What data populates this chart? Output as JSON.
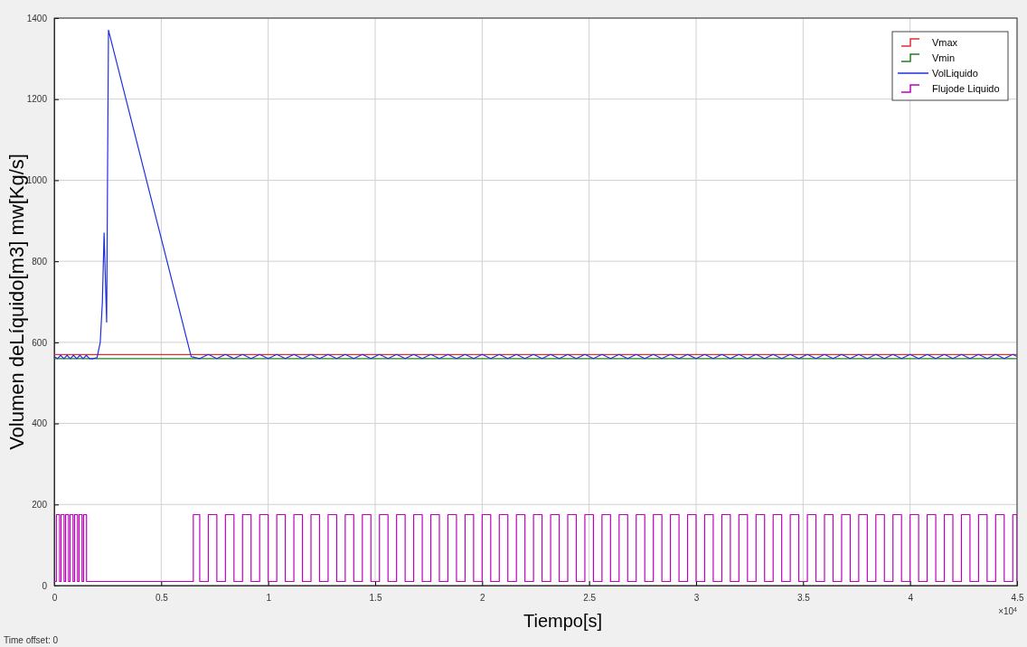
{
  "chart_data": {
    "type": "line",
    "xlabel": "Tiempo[s]",
    "ylabel": "Volumen deLíquido[m3] mw[Kg/s]",
    "xlim": [
      0,
      4.5
    ],
    "xticks": [
      0,
      0.5,
      1,
      1.5,
      2,
      2.5,
      3,
      3.5,
      4,
      4.5
    ],
    "ylim": [
      0,
      1400
    ],
    "yticks": [
      0,
      200,
      400,
      600,
      800,
      1000,
      1200,
      1400
    ],
    "grid": true,
    "legend": "top right",
    "annotations": [
      "×10$^{4}$",
      "Time offset:  0"
    ],
    "series": [
      {
        "name": "Vmax",
        "type": "step",
        "color": "#e03030",
        "x": [
          0,
          4.5
        ],
        "values": [
          570,
          570
        ]
      },
      {
        "name": "Vmin",
        "type": "step",
        "color": "#208020",
        "x": [
          0,
          4.5
        ],
        "values": [
          560,
          560
        ]
      },
      {
        "name": "VolLiquido",
        "type": "line",
        "color": "#2030e0",
        "x": [
          0,
          0.015,
          0.03,
          0.045,
          0.06,
          0.075,
          0.09,
          0.105,
          0.12,
          0.135,
          0.15,
          0.165,
          0.18,
          0.2,
          0.215,
          0.225,
          0.233,
          0.241,
          0.245,
          0.249,
          0.2535,
          0.64,
          0.68,
          0.72,
          0.76,
          0.8,
          0.84,
          0.88,
          0.92,
          0.96,
          1.0,
          1.04,
          1.08,
          1.12,
          1.16,
          1.2,
          1.24,
          1.28,
          1.32,
          1.36,
          1.4,
          1.44,
          1.48,
          1.52,
          1.56,
          1.6,
          1.64,
          1.68,
          1.72,
          1.76,
          1.8,
          1.84,
          1.88,
          1.92,
          1.96,
          2.0,
          2.04,
          2.08,
          2.12,
          2.16,
          2.2,
          2.24,
          2.28,
          2.32,
          2.36,
          2.4,
          2.44,
          2.48,
          2.52,
          2.56,
          2.6,
          2.64,
          2.68,
          2.72,
          2.76,
          2.8,
          2.84,
          2.88,
          2.92,
          2.96,
          3.0,
          3.04,
          3.08,
          3.12,
          3.16,
          3.2,
          3.24,
          3.28,
          3.32,
          3.36,
          3.4,
          3.44,
          3.48,
          3.52,
          3.56,
          3.6,
          3.64,
          3.68,
          3.72,
          3.76,
          3.8,
          3.84,
          3.88,
          3.92,
          3.96,
          4.0,
          4.04,
          4.08,
          4.12,
          4.16,
          4.2,
          4.24,
          4.28,
          4.32,
          4.36,
          4.4,
          4.44,
          4.48,
          4.5
        ],
        "values": [
          565,
          560,
          568,
          560,
          568,
          560,
          568,
          560,
          568,
          560,
          568,
          560,
          560,
          562,
          600,
          700,
          870,
          720,
          650,
          1000,
          1370,
          565,
          560,
          570,
          560,
          570,
          560,
          570,
          560,
          570,
          560,
          570,
          560,
          570,
          560,
          570,
          560,
          570,
          560,
          570,
          560,
          570,
          560,
          570,
          560,
          570,
          560,
          570,
          560,
          570,
          560,
          570,
          560,
          570,
          560,
          570,
          560,
          570,
          560,
          570,
          560,
          570,
          560,
          570,
          560,
          570,
          560,
          570,
          560,
          570,
          560,
          570,
          560,
          570,
          560,
          570,
          560,
          570,
          560,
          570,
          560,
          570,
          560,
          570,
          560,
          570,
          560,
          570,
          560,
          570,
          560,
          570,
          560,
          570,
          560,
          570,
          560,
          570,
          560,
          570,
          560,
          570,
          560,
          570,
          560,
          570,
          560,
          570,
          560,
          570,
          560,
          570,
          560,
          570,
          560,
          570,
          560,
          570,
          565
        ]
      },
      {
        "name": "Flujode Liquido",
        "type": "step",
        "color": "#c000c0",
        "x": [
          0,
          0.01,
          0.025,
          0.032,
          0.046,
          0.053,
          0.067,
          0.074,
          0.088,
          0.095,
          0.109,
          0.116,
          0.13,
          0.137,
          0.151,
          0.65,
          0.68,
          0.72,
          0.76,
          0.8,
          0.84,
          0.88,
          0.92,
          0.96,
          1.0,
          1.04,
          1.08,
          1.12,
          1.16,
          1.2,
          1.24,
          1.28,
          1.32,
          1.36,
          1.4,
          1.44,
          1.48,
          1.52,
          1.56,
          1.6,
          1.64,
          1.68,
          1.72,
          1.76,
          1.8,
          1.84,
          1.88,
          1.92,
          1.96,
          2.0,
          2.04,
          2.08,
          2.12,
          2.16,
          2.2,
          2.24,
          2.28,
          2.32,
          2.36,
          2.4,
          2.44,
          2.48,
          2.52,
          2.56,
          2.6,
          2.64,
          2.68,
          2.72,
          2.76,
          2.8,
          2.84,
          2.88,
          2.92,
          2.96,
          3.0,
          3.04,
          3.08,
          3.12,
          3.16,
          3.2,
          3.24,
          3.28,
          3.32,
          3.36,
          3.4,
          3.44,
          3.48,
          3.52,
          3.56,
          3.6,
          3.64,
          3.68,
          3.72,
          3.76,
          3.8,
          3.84,
          3.88,
          3.92,
          3.96,
          4.0,
          4.04,
          4.08,
          4.12,
          4.16,
          4.2,
          4.24,
          4.28,
          4.32,
          4.36,
          4.4,
          4.44,
          4.48,
          4.5
        ],
        "values": [
          10,
          175,
          10,
          175,
          10,
          175,
          10,
          175,
          10,
          175,
          10,
          175,
          10,
          175,
          10,
          175,
          10,
          175,
          10,
          175,
          10,
          175,
          10,
          175,
          10,
          175,
          10,
          175,
          10,
          175,
          10,
          175,
          10,
          175,
          10,
          175,
          10,
          175,
          10,
          175,
          10,
          175,
          10,
          175,
          10,
          175,
          10,
          175,
          10,
          175,
          10,
          175,
          10,
          175,
          10,
          175,
          10,
          175,
          10,
          175,
          10,
          175,
          10,
          175,
          10,
          175,
          10,
          175,
          10,
          175,
          10,
          175,
          10,
          175,
          10,
          175,
          10,
          175,
          10,
          175,
          10,
          175,
          10,
          175,
          10,
          175,
          10,
          175,
          10,
          175,
          10,
          175,
          10,
          175,
          10,
          175,
          10,
          175,
          10,
          175,
          10,
          175,
          10,
          175,
          10,
          175,
          10,
          175,
          10,
          175,
          10,
          175,
          10
        ]
      }
    ]
  }
}
